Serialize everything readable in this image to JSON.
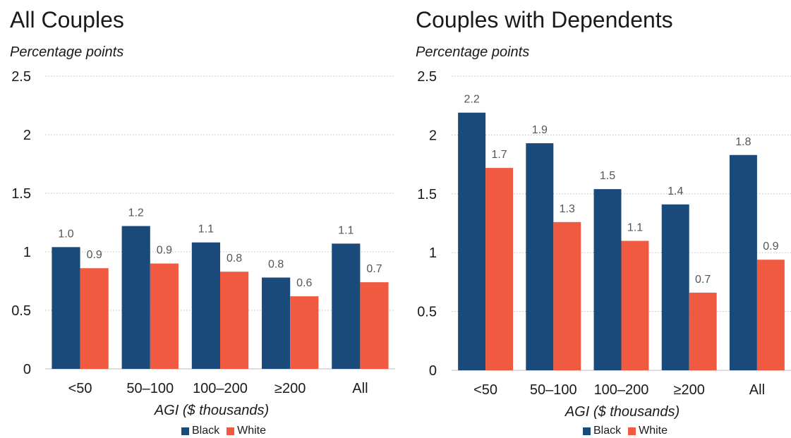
{
  "colors": {
    "black_series": "#1a4a7a",
    "white_series": "#f05a40",
    "grid": "#bdbdbd",
    "text": "#1a1a1a",
    "value_label": "#555555"
  },
  "chart_data": [
    {
      "type": "bar",
      "title": "All Couples",
      "ylabel": "Percentage points",
      "xlabel": "AGI ($ thousands)",
      "ylim": [
        0,
        2.5
      ],
      "yticks": [
        "0",
        "0.5",
        "1",
        "1.5",
        "2",
        "2.5"
      ],
      "grid": true,
      "legend_position": "bottom-center",
      "categories": [
        "<50",
        "50–100",
        "100–200",
        "≥200",
        "All"
      ],
      "series": [
        {
          "name": "Black",
          "values": [
            1.04,
            1.22,
            1.08,
            0.78,
            1.07
          ],
          "labels": [
            "1.0",
            "1.2",
            "1.1",
            "0.8",
            "1.1"
          ]
        },
        {
          "name": "White",
          "values": [
            0.86,
            0.9,
            0.83,
            0.62,
            0.74
          ],
          "labels": [
            "0.9",
            "0.9",
            "0.8",
            "0.6",
            "0.7"
          ]
        }
      ]
    },
    {
      "type": "bar",
      "title": "Couples with Dependents",
      "ylabel": "Percentage points",
      "xlabel": "AGI ($ thousands)",
      "ylim": [
        0,
        2.5
      ],
      "yticks": [
        "0",
        "0.5",
        "1",
        "1.5",
        "2",
        "2.5"
      ],
      "grid": true,
      "legend_position": "bottom-center",
      "categories": [
        "<50",
        "50–100",
        "100–200",
        "≥200",
        "All"
      ],
      "series": [
        {
          "name": "Black",
          "values": [
            2.19,
            1.93,
            1.54,
            1.41,
            1.83
          ],
          "labels": [
            "2.2",
            "1.9",
            "1.5",
            "1.4",
            "1.8"
          ]
        },
        {
          "name": "White",
          "values": [
            1.72,
            1.26,
            1.1,
            0.66,
            0.94
          ],
          "labels": [
            "1.7",
            "1.3",
            "1.1",
            "0.7",
            "0.9"
          ]
        }
      ]
    }
  ]
}
